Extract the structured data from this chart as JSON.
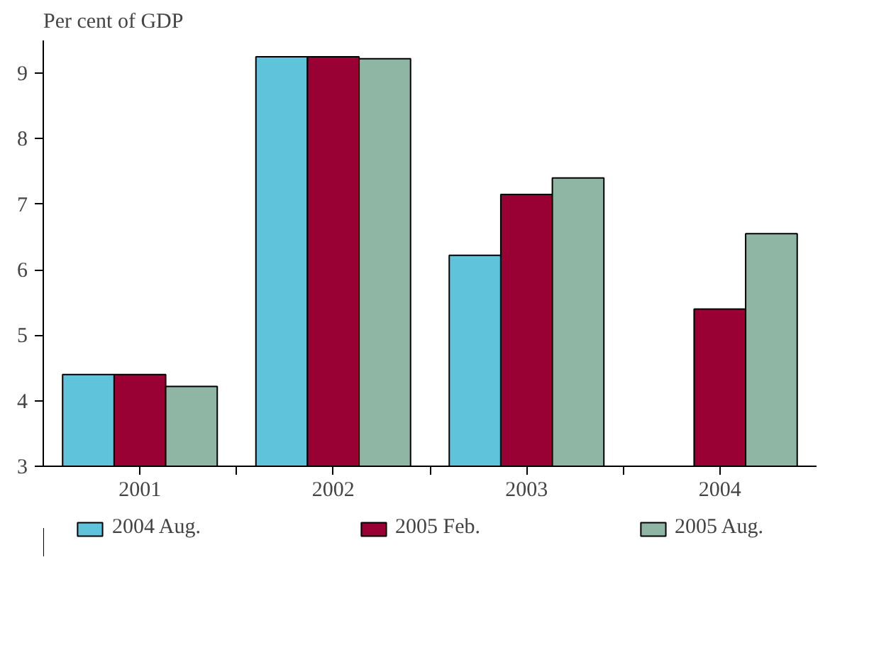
{
  "chart_data": {
    "type": "bar",
    "ylabel": "Per cent of GDP",
    "categories": [
      "2001",
      "2002",
      "2003",
      "2004"
    ],
    "series": [
      {
        "name": "2004 Aug.",
        "color": "#5fc3dc",
        "values": [
          4.4,
          9.25,
          6.22,
          null
        ]
      },
      {
        "name": "2005 Feb.",
        "color": "#990033",
        "values": [
          4.4,
          9.25,
          7.15,
          5.4
        ]
      },
      {
        "name": "2005 Aug.",
        "color": "#8fb5a5",
        "values": [
          4.22,
          9.22,
          7.4,
          6.55
        ]
      }
    ],
    "ylim": [
      3,
      9.5
    ],
    "yticks": [
      3,
      4,
      5,
      6,
      7,
      8,
      9
    ],
    "grid": false,
    "legend": "bottom"
  }
}
